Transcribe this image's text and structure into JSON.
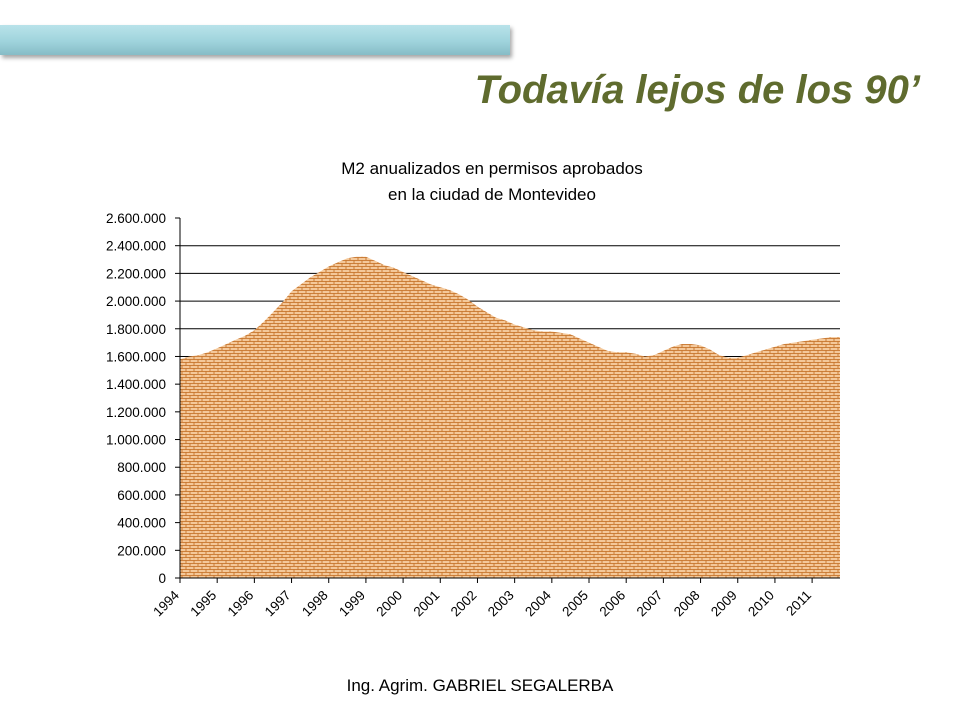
{
  "slide": {
    "title": "Todavía lejos de los 90’",
    "footer": "Ing. Agrim. GABRIEL SEGALERBA",
    "accent_bar_color": "#9fd3dc",
    "title_color": "#5f6b2e"
  },
  "chart_data": {
    "type": "area",
    "title": [
      "M2 anualizados en permisos aprobados",
      "en la ciudad de Montevideo"
    ],
    "xlabel": "",
    "ylabel": "",
    "categories": [
      "1994",
      "1995",
      "1996",
      "1997",
      "1998",
      "1999",
      "2000",
      "2001",
      "2002",
      "2003",
      "2004",
      "2005",
      "2006",
      "2007",
      "2008",
      "2009",
      "2010",
      "2011"
    ],
    "ylim": [
      0,
      2600000
    ],
    "yticks": [
      0,
      200000,
      400000,
      600000,
      800000,
      1000000,
      1200000,
      1400000,
      1600000,
      1800000,
      2000000,
      2200000,
      2400000,
      2600000
    ],
    "ytick_labels": [
      "0",
      "200.000",
      "400.000",
      "600.000",
      "800.000",
      "1.000.000",
      "1.200.000",
      "1.400.000",
      "1.600.000",
      "1.800.000",
      "2.000.000",
      "2.200.000",
      "2.400.000",
      "2.600.000"
    ],
    "grid": {
      "horizontal": true,
      "at": [
        1600000,
        1800000,
        2000000,
        2200000,
        2400000
      ]
    },
    "fill_color": "#f4c89a",
    "pattern_color": "#c0691c",
    "series": [
      {
        "x": [
          1994,
          1994.25,
          1994.5,
          1994.75,
          1995,
          1995.25,
          1995.5,
          1995.75,
          1996,
          1996.25,
          1996.5,
          1996.75,
          1997,
          1997.25,
          1997.5,
          1997.75,
          1998,
          1998.25,
          1998.5,
          1998.75,
          1999,
          1999.25,
          1999.5,
          1999.75,
          2000,
          2000.25,
          2000.5,
          2000.75,
          2001,
          2001.25,
          2001.5,
          2001.75,
          2002,
          2002.25,
          2002.5,
          2002.75,
          2003,
          2003.25,
          2003.5,
          2003.75,
          2004,
          2004.25,
          2004.5,
          2004.75,
          2005,
          2005.25,
          2005.5,
          2005.75,
          2006,
          2006.25,
          2006.5,
          2006.75,
          2007,
          2007.25,
          2007.5,
          2007.75,
          2008,
          2008.25,
          2008.5,
          2008.75,
          2009,
          2009.25,
          2009.5,
          2009.75,
          2010,
          2010.25,
          2010.5,
          2010.75,
          2011,
          2011.25,
          2011.5,
          2011.75
        ],
        "values": [
          1580000,
          1600000,
          1610000,
          1630000,
          1660000,
          1690000,
          1720000,
          1750000,
          1790000,
          1850000,
          1920000,
          1990000,
          2070000,
          2120000,
          2170000,
          2210000,
          2250000,
          2280000,
          2310000,
          2320000,
          2320000,
          2290000,
          2260000,
          2240000,
          2210000,
          2180000,
          2150000,
          2120000,
          2100000,
          2080000,
          2050000,
          2010000,
          1960000,
          1920000,
          1880000,
          1860000,
          1830000,
          1810000,
          1790000,
          1780000,
          1780000,
          1770000,
          1760000,
          1730000,
          1700000,
          1670000,
          1640000,
          1630000,
          1630000,
          1620000,
          1600000,
          1610000,
          1640000,
          1670000,
          1690000,
          1690000,
          1680000,
          1650000,
          1610000,
          1590000,
          1590000,
          1610000,
          1630000,
          1650000,
          1670000,
          1690000,
          1700000,
          1710000,
          1720000,
          1730000,
          1740000,
          1740000
        ]
      }
    ]
  }
}
